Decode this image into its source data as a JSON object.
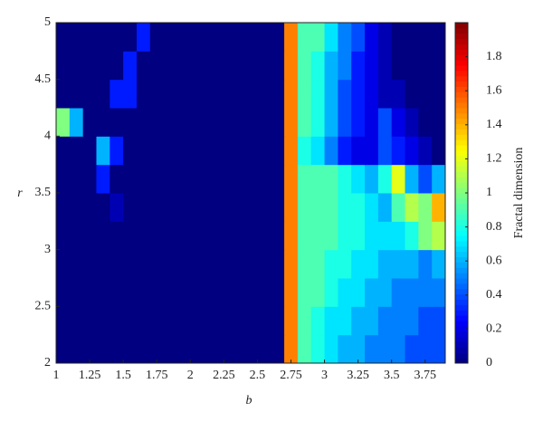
{
  "chart_data": {
    "type": "heatmap",
    "xlabel": "b",
    "ylabel": "r",
    "colorbar_label": "Fractal dimension",
    "xlim": [
      1,
      3.9
    ],
    "ylim": [
      2,
      5
    ],
    "xticks": [
      1,
      1.25,
      1.5,
      1.75,
      2,
      2.25,
      2.5,
      2.75,
      3,
      3.25,
      3.5,
      3.75
    ],
    "yticks": [
      2,
      2.5,
      3,
      3.5,
      4,
      4.5,
      5
    ],
    "colormap": "jet",
    "clim": [
      0,
      2
    ],
    "cticks": [
      0,
      0.2,
      0.4,
      0.6,
      0.8,
      1,
      1.2,
      1.4,
      1.6,
      1.8
    ],
    "z": [
      [
        0,
        0,
        0,
        0,
        0,
        0,
        0,
        0,
        0,
        0,
        0,
        0,
        0,
        0,
        0,
        0,
        0,
        1.5,
        0.9,
        0.8,
        0.7,
        0.6,
        0.6,
        0.5,
        0.5,
        0.5,
        0.4,
        0.4,
        0.4
      ],
      [
        0,
        0,
        0,
        0,
        0,
        0,
        0,
        0,
        0,
        0,
        0,
        0,
        0,
        0,
        0,
        0,
        0,
        1.5,
        0.9,
        0.8,
        0.7,
        0.7,
        0.6,
        0.6,
        0.5,
        0.5,
        0.5,
        0.4,
        0.4
      ],
      [
        0,
        0,
        0,
        0,
        0,
        0,
        0,
        0,
        0,
        0,
        0,
        0,
        0,
        0,
        0,
        0,
        0,
        1.5,
        0.9,
        0.9,
        0.8,
        0.7,
        0.7,
        0.6,
        0.6,
        0.5,
        0.5,
        0.5,
        0.5
      ],
      [
        0,
        0,
        0,
        0,
        0,
        0,
        0,
        0,
        0,
        0,
        0,
        0,
        0,
        0,
        0,
        0,
        0,
        1.5,
        0.9,
        0.9,
        0.8,
        0.8,
        0.7,
        0.7,
        0.6,
        0.6,
        0.6,
        0.5,
        0.6
      ],
      [
        0,
        0,
        0,
        0,
        0,
        0,
        0,
        0,
        0,
        0,
        0,
        0,
        0,
        0,
        0,
        0,
        0,
        1.5,
        0.9,
        0.9,
        0.9,
        0.8,
        0.8,
        0.7,
        0.7,
        0.7,
        0.8,
        1.0,
        1.1
      ],
      [
        0,
        0,
        0,
        0,
        0.1,
        0,
        0,
        0,
        0,
        0,
        0,
        0,
        0,
        0,
        0,
        0,
        0,
        1.5,
        0.9,
        0.9,
        0.9,
        0.8,
        0.8,
        0.7,
        0.6,
        0.9,
        1.1,
        1.0,
        1.4
      ],
      [
        0,
        0,
        0,
        0.3,
        0,
        0,
        0,
        0,
        0,
        0,
        0,
        0,
        0,
        0,
        0,
        0,
        0,
        1.5,
        0.9,
        0.9,
        0.9,
        0.8,
        0.7,
        0.6,
        0.8,
        1.2,
        0.6,
        0.4,
        0.6
      ],
      [
        0,
        0,
        0,
        0.6,
        0.3,
        0,
        0,
        0,
        0,
        0,
        0,
        0,
        0,
        0,
        0,
        0,
        0,
        1.5,
        0.8,
        0.7,
        0.5,
        0.3,
        0.2,
        0.2,
        0.4,
        0.3,
        0.2,
        0.1,
        0
      ],
      [
        1.0,
        0.6,
        0,
        0,
        0,
        0,
        0,
        0,
        0,
        0,
        0,
        0,
        0,
        0,
        0,
        0,
        0,
        1.5,
        0.9,
        0.8,
        0.6,
        0.4,
        0.3,
        0.2,
        0.4,
        0.2,
        0.1,
        0,
        0
      ],
      [
        0,
        0,
        0,
        0,
        0.3,
        0.3,
        0,
        0,
        0,
        0,
        0,
        0,
        0,
        0,
        0,
        0,
        0,
        1.5,
        0.9,
        0.8,
        0.6,
        0.4,
        0.3,
        0.2,
        0.1,
        0.1,
        0,
        0,
        0
      ],
      [
        0,
        0,
        0,
        0,
        0,
        0.3,
        0,
        0,
        0,
        0,
        0,
        0,
        0,
        0,
        0,
        0,
        0,
        1.5,
        0.9,
        0.8,
        0.6,
        0.5,
        0.3,
        0.2,
        0.1,
        0,
        0,
        0,
        0
      ],
      [
        0,
        0,
        0,
        0,
        0,
        0,
        0.3,
        0,
        0,
        0,
        0,
        0,
        0,
        0,
        0,
        0,
        0,
        1.5,
        0.9,
        0.9,
        0.7,
        0.5,
        0.4,
        0.2,
        0.1,
        0,
        0,
        0,
        0
      ]
    ]
  }
}
